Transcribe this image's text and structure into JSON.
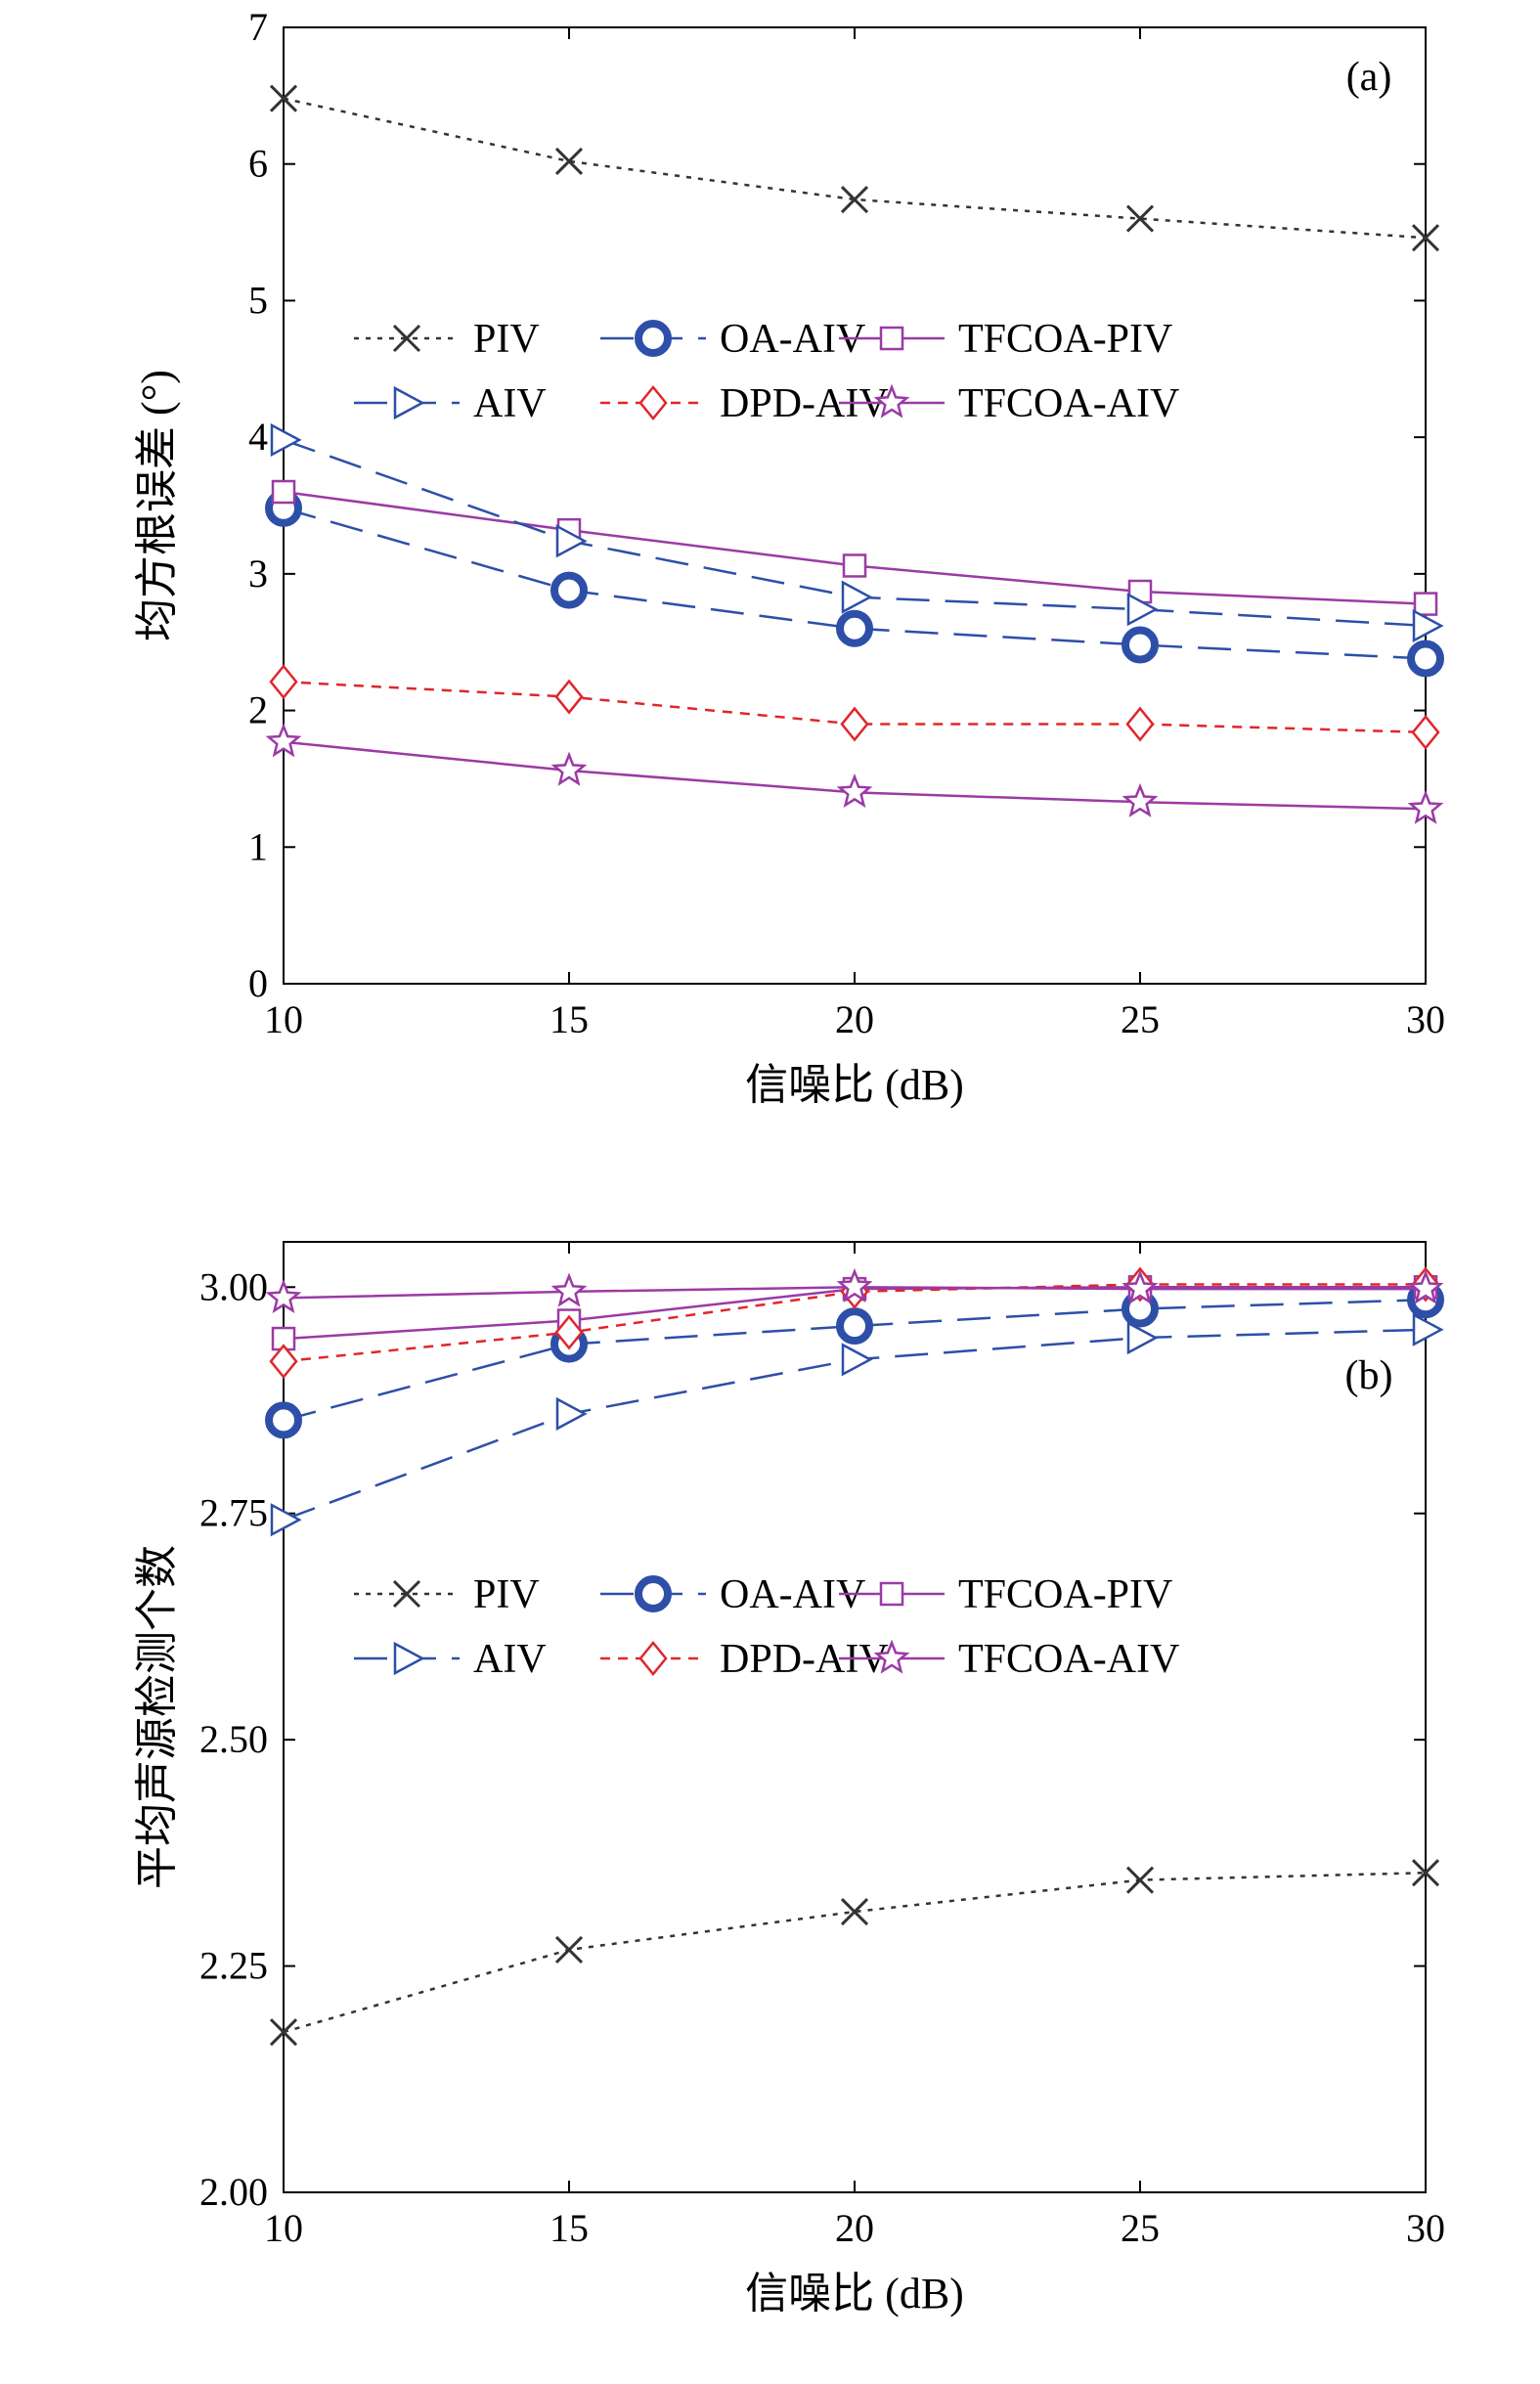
{
  "chart_data": [
    {
      "type": "line",
      "panel_label": "(a)",
      "xlabel": "信噪比 (dB)",
      "ylabel": "均方根误差 (°)",
      "x": [
        10,
        15,
        20,
        25,
        30
      ],
      "xlim": [
        10,
        30
      ],
      "ylim": [
        0,
        7
      ],
      "xticks": [
        "10",
        "15",
        "20",
        "25",
        "30"
      ],
      "yticks": [
        "0",
        "1",
        "2",
        "3",
        "4",
        "5",
        "6",
        "7"
      ],
      "grid": false,
      "legend_position": "center, in two rows",
      "series": [
        {
          "name": "PIV",
          "values": [
            6.48,
            6.02,
            5.74,
            5.6,
            5.46
          ],
          "color": "#333333",
          "dash": "dotted",
          "marker": "x"
        },
        {
          "name": "OA-AIV",
          "values": [
            3.48,
            2.88,
            2.6,
            2.48,
            2.38
          ],
          "color": "#2d4fa8",
          "dash": "long",
          "marker": "circle-bold"
        },
        {
          "name": "TFCOA-PIV",
          "values": [
            3.6,
            3.32,
            3.06,
            2.87,
            2.78
          ],
          "color": "#9b3aa5",
          "dash": "solid",
          "marker": "square"
        },
        {
          "name": "AIV",
          "values": [
            3.98,
            3.24,
            2.83,
            2.74,
            2.62
          ],
          "color": "#2d4fa8",
          "dash": "long",
          "marker": "triangle-right"
        },
        {
          "name": "DPD-AIV",
          "values": [
            2.21,
            2.1,
            1.9,
            1.9,
            1.84
          ],
          "color": "#e0262b",
          "dash": "short",
          "marker": "diamond"
        },
        {
          "name": "TFCOA-AIV",
          "values": [
            1.77,
            1.56,
            1.4,
            1.33,
            1.28
          ],
          "color": "#9b3aa5",
          "dash": "solid",
          "marker": "star"
        }
      ]
    },
    {
      "type": "line",
      "panel_label": "(b)",
      "xlabel": "信噪比 (dB)",
      "ylabel": "平均声源检测个数",
      "x": [
        10,
        15,
        20,
        25,
        30
      ],
      "xlim": [
        10,
        30
      ],
      "ylim": [
        2.0,
        3.05
      ],
      "xticks": [
        "10",
        "15",
        "20",
        "25",
        "30"
      ],
      "yticks": [
        "2.00",
        "2.25",
        "2.50",
        "2.75",
        "3.00"
      ],
      "grid": false,
      "legend_position": "center, in two rows",
      "series": [
        {
          "name": "PIV",
          "values": [
            2.177,
            2.268,
            2.31,
            2.345,
            2.353
          ],
          "color": "#333333",
          "dash": "dotted",
          "marker": "x"
        },
        {
          "name": "OA-AIV",
          "values": [
            2.853,
            2.937,
            2.957,
            2.976,
            2.986
          ],
          "color": "#2d4fa8",
          "dash": "long",
          "marker": "circle-bold"
        },
        {
          "name": "TFCOA-PIV",
          "values": [
            2.943,
            2.963,
            2.998,
            3.0,
            3.0
          ],
          "color": "#9b3aa5",
          "dash": "solid",
          "marker": "square"
        },
        {
          "name": "AIV",
          "values": [
            2.743,
            2.86,
            2.92,
            2.944,
            2.953
          ],
          "color": "#2d4fa8",
          "dash": "long",
          "marker": "triangle-right"
        },
        {
          "name": "DPD-AIV",
          "values": [
            2.918,
            2.95,
            2.995,
            3.003,
            3.003
          ],
          "color": "#e0262b",
          "dash": "short",
          "marker": "diamond"
        },
        {
          "name": "TFCOA-AIV",
          "values": [
            2.988,
            2.995,
            3.0,
            2.998,
            2.998
          ],
          "color": "#9b3aa5",
          "dash": "solid",
          "marker": "star"
        }
      ]
    }
  ]
}
